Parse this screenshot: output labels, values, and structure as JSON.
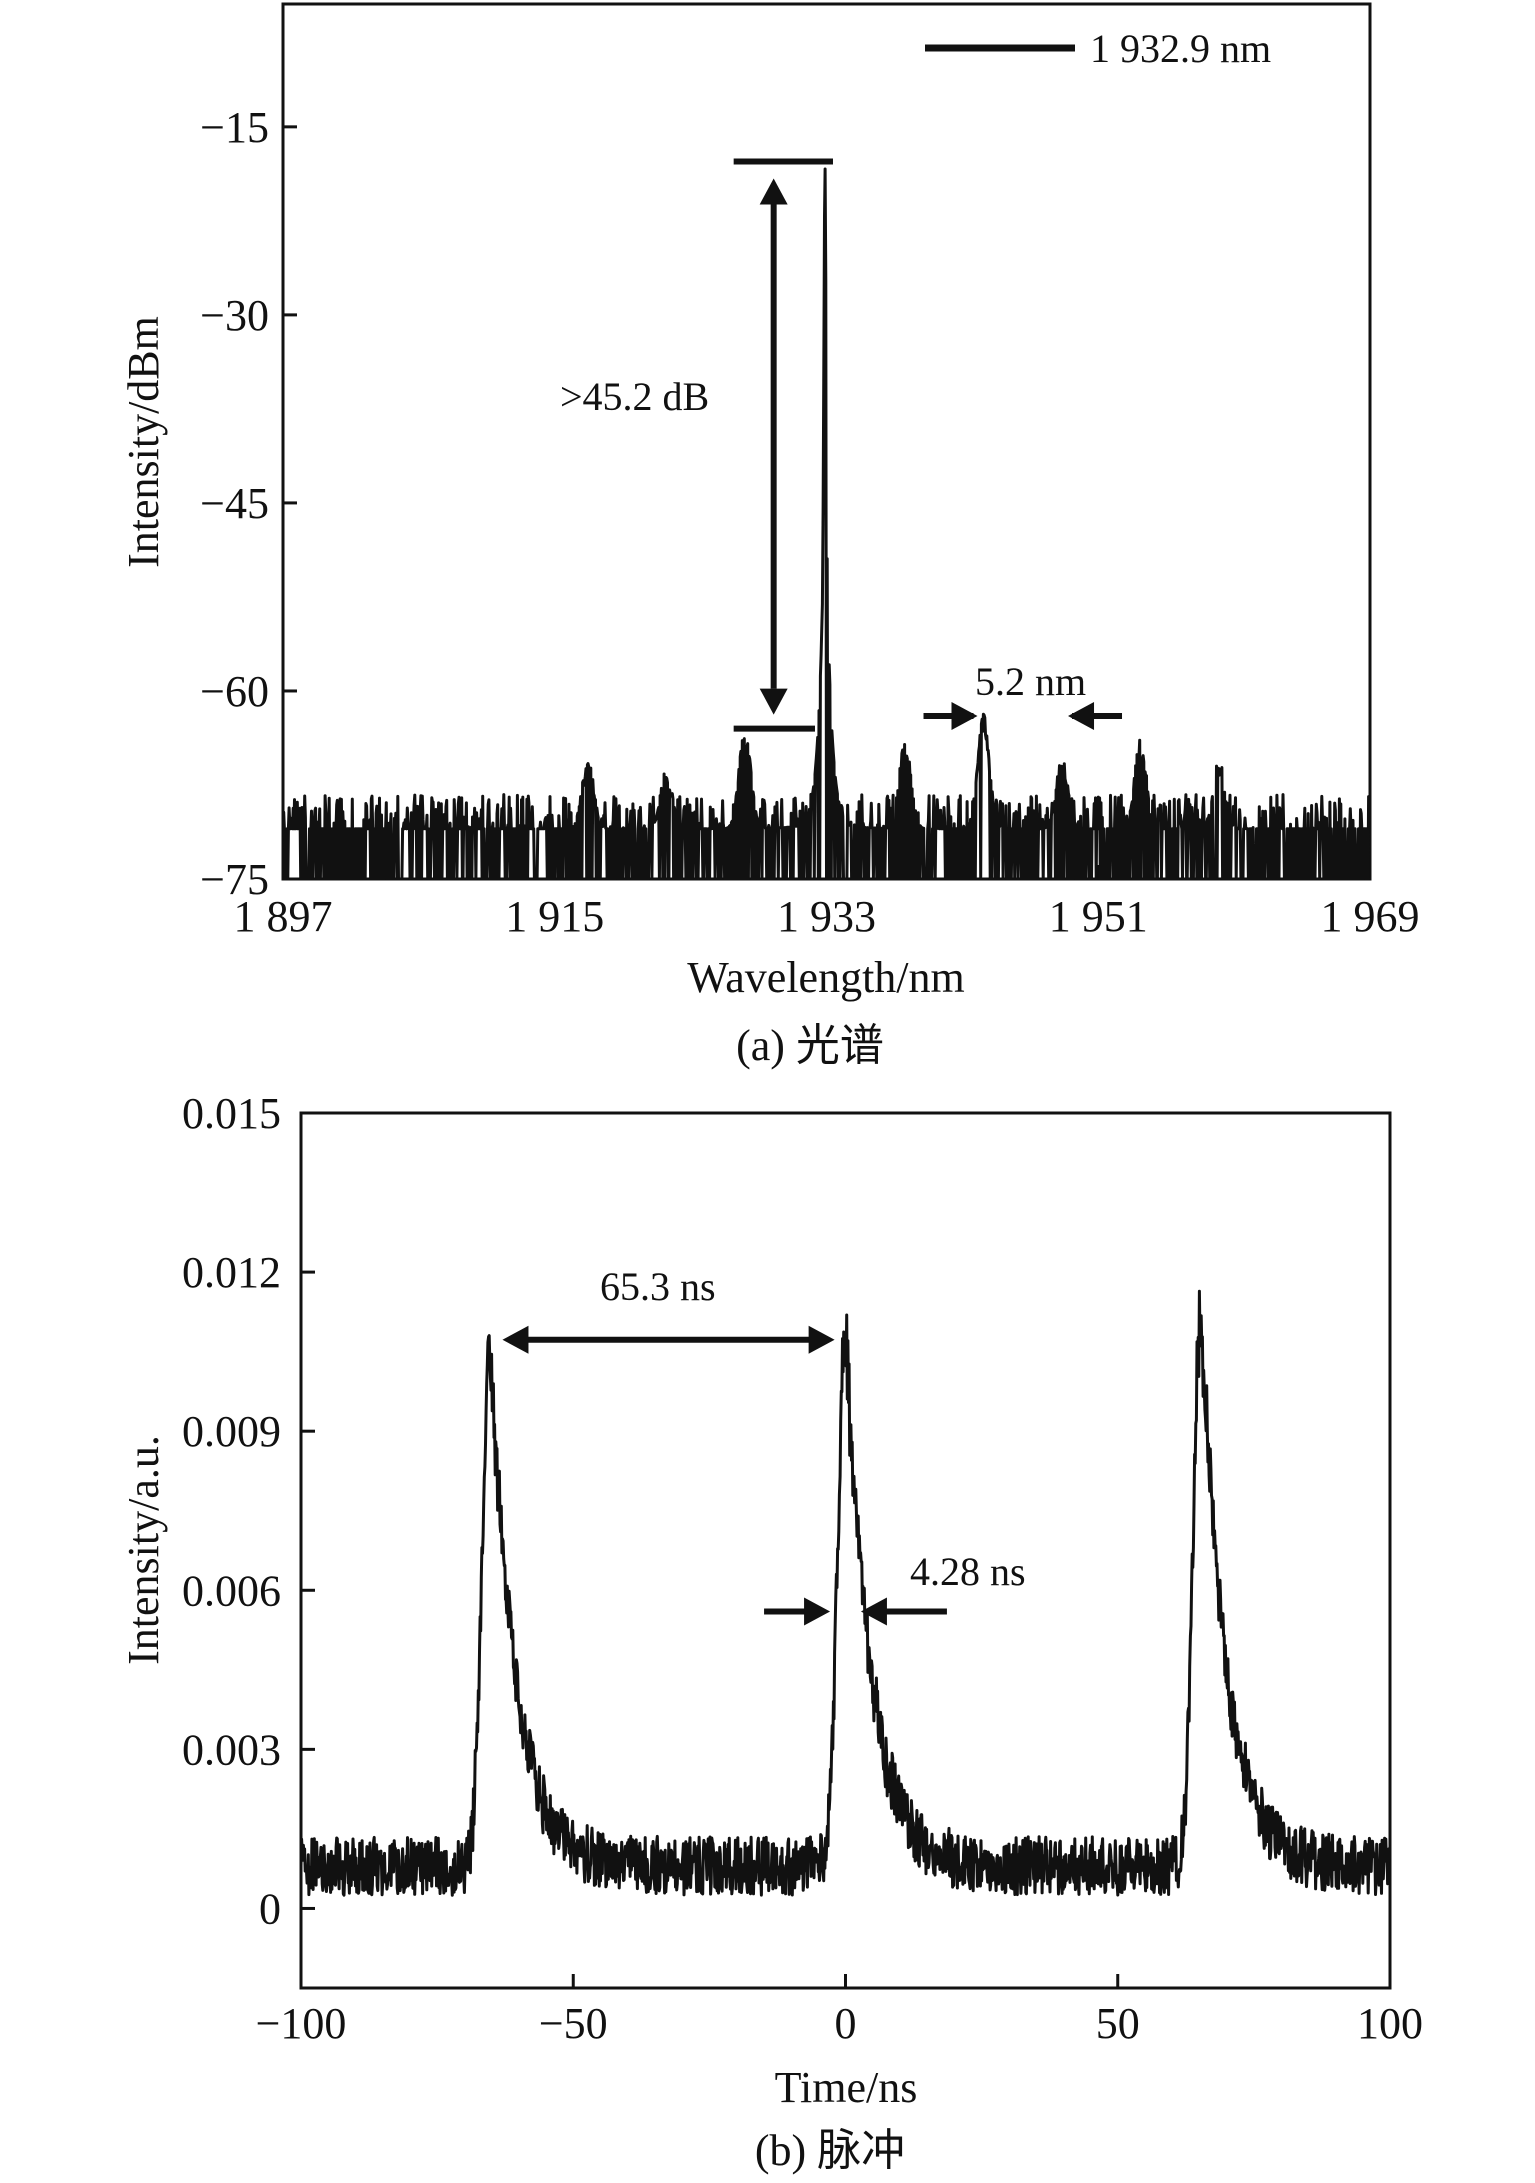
{
  "charts": [
    {
      "id": "spectrum",
      "caption": "(a) 光谱",
      "chart_data": {
        "type": "line",
        "xlabel": "Wavelength/nm",
        "ylabel": "Intensity/dBm",
        "xlim": [
          1897,
          1969
        ],
        "ylim": [
          -75,
          -65
        ],
        "x_ticks": [
          1897,
          1915,
          1933,
          1951,
          1969
        ],
        "x_tick_labels": [
          "1 897",
          "1 915",
          "1 933",
          "1 951",
          "1 969"
        ],
        "y_ticks": [
          -15,
          -30,
          -45,
          -60,
          -75
        ],
        "y_tick_labels": [
          "−15",
          "−30",
          "−45",
          "−60",
          "−75"
        ],
        "legend": {
          "label": "1 932.9 nm",
          "position": "top-right"
        },
        "noise_floor": -71,
        "main_peak": {
          "x": 1932.9,
          "y": -18
        },
        "side_peaks": [
          {
            "x": 1917.2,
            "y": -66
          },
          {
            "x": 1922.4,
            "y": -67
          },
          {
            "x": 1927.6,
            "y": -63.5
          },
          {
            "x": 1938.2,
            "y": -64.5
          },
          {
            "x": 1943.4,
            "y": -62.5
          },
          {
            "x": 1948.6,
            "y": -66
          },
          {
            "x": 1953.8,
            "y": -64.5
          },
          {
            "x": 1959.0,
            "y": -66
          }
        ],
        "annotations": [
          {
            "text": ">45.2 dB",
            "type": "vertical-arrow",
            "x": 1929.5,
            "y_from": -18,
            "y_to": -63
          },
          {
            "text": "5.2 nm",
            "type": "inward-arrows",
            "x_from": 1943.4,
            "x_to": 1948.6,
            "y": -62
          }
        ]
      }
    },
    {
      "id": "pulse",
      "caption": "(b) 脉冲",
      "chart_data": {
        "type": "line",
        "xlabel": "Time/ns",
        "ylabel": "Intensity/a.u.",
        "xlim": [
          -100,
          100
        ],
        "ylim": [
          -0.0015,
          0.015
        ],
        "x_ticks": [
          -100,
          -50,
          0,
          50,
          100
        ],
        "x_tick_labels": [
          "−100",
          "−50",
          "0",
          "50",
          "100"
        ],
        "y_ticks": [
          0,
          0.003,
          0.006,
          0.009,
          0.012,
          0.015
        ],
        "y_tick_labels": [
          "0",
          "0.003",
          "0.006",
          "0.009",
          "0.012",
          "0.015"
        ],
        "baseline": 0.0008,
        "pulses": [
          {
            "t": -65.3,
            "peak": 0.0108
          },
          {
            "t": 0,
            "peak": 0.011
          },
          {
            "t": 65.3,
            "peak": 0.0113
          }
        ],
        "pulse_width_ns": 4.28,
        "pulse_period_ns": 65.3,
        "annotations": [
          {
            "text": "65.3 ns",
            "type": "double-arrow",
            "x_from": -63,
            "x_to": -2,
            "y": 0.0108
          },
          {
            "text": "4.28 ns",
            "type": "inward-arrows",
            "x_from": -2.1,
            "x_to": 2.1,
            "y": 0.0056
          }
        ]
      }
    }
  ]
}
